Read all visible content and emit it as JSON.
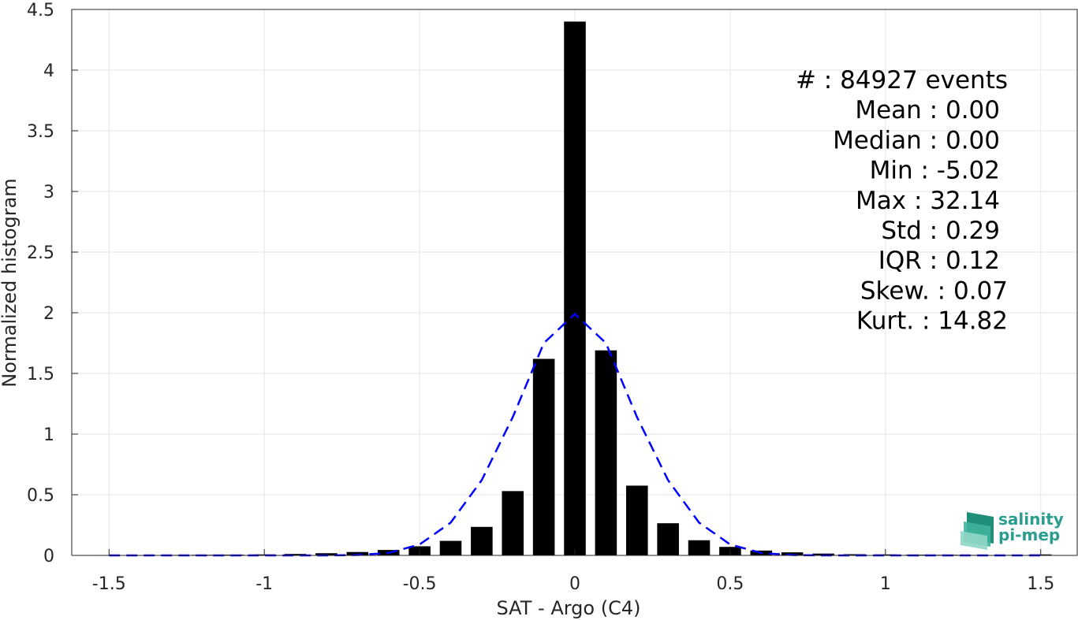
{
  "chart_data": {
    "type": "bar",
    "xlabel": "SAT - Argo (C4)",
    "ylabel": "Normalized histogram",
    "xlim": [
      -1.62,
      1.62
    ],
    "ylim": [
      0,
      4.5
    ],
    "grid": true,
    "xticks": [
      -1.5,
      -1,
      -0.5,
      0,
      0.5,
      1,
      1.5
    ],
    "xtick_labels": [
      "-1.5",
      "-1",
      "-0.5",
      "0",
      "0.5",
      "1",
      "1.5"
    ],
    "yticks": [
      0,
      0.5,
      1,
      1.5,
      2,
      2.5,
      3,
      3.5,
      4,
      4.5
    ],
    "ytick_labels": [
      "0",
      "0.5",
      "1",
      "1.5",
      "2",
      "2.5",
      "3",
      "3.5",
      "4",
      "4.5"
    ],
    "bar_width": 0.07,
    "bars": {
      "x": [
        -1.5,
        -1.4,
        -1.3,
        -1.2,
        -1.1,
        -1.0,
        -0.9,
        -0.8,
        -0.7,
        -0.6,
        -0.5,
        -0.4,
        -0.3,
        -0.2,
        -0.1,
        0.0,
        0.1,
        0.2,
        0.3,
        0.4,
        0.5,
        0.6,
        0.7,
        0.8,
        0.9,
        1.0,
        1.1,
        1.2,
        1.3,
        1.4,
        1.5
      ],
      "values": [
        0.003,
        0.003,
        0.004,
        0.005,
        0.006,
        0.008,
        0.012,
        0.018,
        0.028,
        0.045,
        0.075,
        0.12,
        0.235,
        0.53,
        1.62,
        4.4,
        1.69,
        0.575,
        0.265,
        0.125,
        0.07,
        0.04,
        0.025,
        0.015,
        0.01,
        0.008,
        0.006,
        0.005,
        0.004,
        0.004,
        0.008
      ],
      "color": "#000000"
    },
    "fit_curve": {
      "style": "dashed",
      "color": "#0000ff",
      "x": [
        -1.5,
        -1.4,
        -1.3,
        -1.2,
        -1.1,
        -1.0,
        -0.9,
        -0.8,
        -0.7,
        -0.6,
        -0.5,
        -0.4,
        -0.3,
        -0.2,
        -0.1,
        0.0,
        0.1,
        0.2,
        0.3,
        0.4,
        0.5,
        0.6,
        0.7,
        0.8,
        0.9,
        1.0,
        1.1,
        1.2,
        1.3,
        1.4,
        1.5
      ],
      "y": [
        0,
        0,
        0,
        0,
        0,
        0,
        0,
        0,
        0.003,
        0.02,
        0.09,
        0.27,
        0.62,
        1.14,
        1.75,
        1.99,
        1.75,
        1.14,
        0.62,
        0.27,
        0.09,
        0.02,
        0.003,
        0,
        0,
        0,
        0,
        0,
        0,
        0,
        0
      ]
    },
    "annotations": [
      "#  : 84927 events",
      "Mean : 0.00",
      "Median : 0.00",
      "Min : -5.02",
      "Max : 32.14",
      "Std : 0.29",
      "IQR : 0.12",
      "Skew. : 0.07",
      "Kurt. : 14.82"
    ]
  },
  "logo": {
    "line1": "salinity",
    "line2": "pi-mep",
    "color": "#2a9d8f"
  }
}
